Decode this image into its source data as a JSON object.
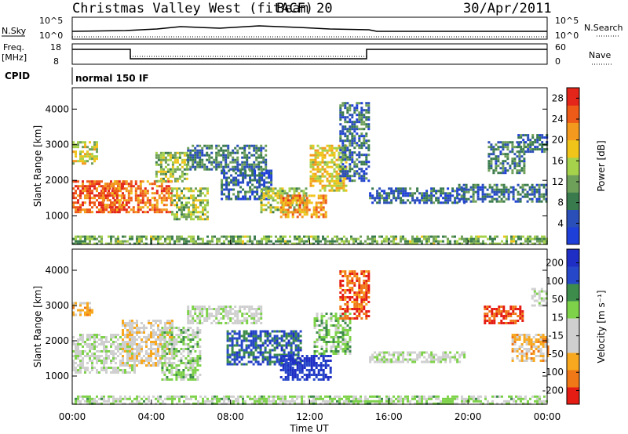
{
  "header": {
    "station": "Christmas Valley West (fitACF)",
    "beam": "Beam 20",
    "date": "30/Apr/2011"
  },
  "status_panels": {
    "nsky_label": "N.Sky",
    "nsearch_label": "N.Search",
    "nsky_left_ticks": [
      "10^5",
      "10^0"
    ],
    "nsky_right_ticks": [
      "10^5",
      "10^0"
    ],
    "freq_label_1": "Freq.",
    "freq_label_2": "[MHz]",
    "freq_ticks": [
      "18",
      "8"
    ],
    "nave_label": "Nave",
    "nave_ticks": [
      "60",
      "0"
    ],
    "cpid_label": "CPID",
    "cpid_value": "normal 150 IF"
  },
  "colors": {
    "power_scale": [
      "#1f3fd9",
      "#2b4fb8",
      "#3a7b4e",
      "#6fa05a",
      "#a6d24b",
      "#f0c419",
      "#f39a1e",
      "#ee5a17",
      "#e3251a"
    ],
    "velocity_scale": [
      "#e51c14",
      "#f07817",
      "#f7a81e",
      "#cfcfcf",
      "#cfcfcf",
      "#7ed24a",
      "#3d8c4c",
      "#2747c9",
      "#1f2fc5"
    ]
  },
  "chart_data": [
    {
      "type": "heatmap",
      "title": "",
      "xlabel": "Time UT",
      "ylabel": "Slant Range [km]",
      "x_ticks": [
        "00:00",
        "04:00",
        "08:00",
        "12:00",
        "16:00",
        "20:00",
        "00:00"
      ],
      "x_range_hours": [
        0,
        24
      ],
      "y_ticks": [
        1000,
        2000,
        3000,
        4000
      ],
      "ylim": [
        200,
        4600
      ],
      "colorbar": {
        "label": "Power [dB]",
        "ticks": [
          "4",
          "8",
          "12",
          "16",
          "20",
          "24",
          "28"
        ],
        "range": [
          0,
          30
        ]
      },
      "regions": [
        {
          "t0": 0.0,
          "t1": 2.6,
          "r0": 1100,
          "r1": 2000,
          "value": 26
        },
        {
          "t0": 0.0,
          "t1": 1.2,
          "r0": 2500,
          "r1": 3100,
          "value": 16
        },
        {
          "t0": 1.5,
          "t1": 5.0,
          "r0": 1100,
          "r1": 2000,
          "value": 24
        },
        {
          "t0": 4.2,
          "t1": 5.8,
          "r0": 2000,
          "r1": 2800,
          "value": 14
        },
        {
          "t0": 5.0,
          "t1": 6.8,
          "r0": 900,
          "r1": 1800,
          "value": 14
        },
        {
          "t0": 5.8,
          "t1": 9.8,
          "r0": 2300,
          "r1": 3000,
          "value": 8
        },
        {
          "t0": 7.5,
          "t1": 10.0,
          "r0": 1500,
          "r1": 2300,
          "value": 6
        },
        {
          "t0": 9.5,
          "t1": 11.8,
          "r0": 1100,
          "r1": 1800,
          "value": 14
        },
        {
          "t0": 10.5,
          "t1": 12.8,
          "r0": 1000,
          "r1": 1600,
          "value": 22
        },
        {
          "t0": 12.0,
          "t1": 13.8,
          "r0": 1700,
          "r1": 3000,
          "value": 18
        },
        {
          "t0": 13.5,
          "t1": 15.0,
          "r0": 2000,
          "r1": 4200,
          "value": 7
        },
        {
          "t0": 15.0,
          "t1": 19.8,
          "r0": 1400,
          "r1": 1800,
          "value": 6
        },
        {
          "t0": 19.5,
          "t1": 24.0,
          "r0": 1400,
          "r1": 1900,
          "value": 7
        },
        {
          "t0": 21.0,
          "t1": 22.8,
          "r0": 2200,
          "r1": 3100,
          "value": 8
        },
        {
          "t0": 22.5,
          "t1": 24.0,
          "r0": 2800,
          "r1": 3300,
          "value": 6
        },
        {
          "t0": 0.0,
          "t1": 24.0,
          "r0": 200,
          "r1": 450,
          "value": 12
        }
      ]
    },
    {
      "type": "heatmap",
      "title": "",
      "xlabel": "Time UT",
      "ylabel": "Slant Range [km]",
      "x_ticks": [
        "00:00",
        "04:00",
        "08:00",
        "12:00",
        "16:00",
        "20:00",
        "00:00"
      ],
      "x_range_hours": [
        0,
        24
      ],
      "y_ticks": [
        1000,
        2000,
        3000,
        4000
      ],
      "ylim": [
        200,
        4600
      ],
      "colorbar": {
        "label": "Velocity [m s⁻¹]",
        "ticks": [
          "200",
          "100",
          "50",
          "15",
          "-15",
          "-50",
          "-100",
          "-200"
        ],
        "range": [
          -250,
          250
        ]
      },
      "regions": [
        {
          "t0": 0.0,
          "t1": 3.2,
          "r0": 1100,
          "r1": 2200,
          "value": 0
        },
        {
          "t0": 0.0,
          "t1": 1.0,
          "r0": 2700,
          "r1": 3100,
          "value": -100
        },
        {
          "t0": 2.5,
          "t1": 5.0,
          "r0": 1300,
          "r1": 2600,
          "value": -60
        },
        {
          "t0": 4.5,
          "t1": 6.5,
          "r0": 900,
          "r1": 2400,
          "value": 40
        },
        {
          "t0": 5.8,
          "t1": 9.5,
          "r0": 2500,
          "r1": 3000,
          "value": 0
        },
        {
          "t0": 7.8,
          "t1": 11.5,
          "r0": 1300,
          "r1": 2300,
          "value": 150
        },
        {
          "t0": 10.5,
          "t1": 13.0,
          "r0": 900,
          "r1": 1600,
          "value": 200
        },
        {
          "t0": 12.2,
          "t1": 14.0,
          "r0": 1600,
          "r1": 2800,
          "value": 60
        },
        {
          "t0": 13.5,
          "t1": 15.0,
          "r0": 2600,
          "r1": 4000,
          "value": -180
        },
        {
          "t0": 15.0,
          "t1": 19.8,
          "r0": 1400,
          "r1": 1700,
          "value": 0
        },
        {
          "t0": 20.8,
          "t1": 22.8,
          "r0": 2500,
          "r1": 3000,
          "value": -200
        },
        {
          "t0": 22.2,
          "t1": 24.0,
          "r0": 1400,
          "r1": 2200,
          "value": -100
        },
        {
          "t0": 23.2,
          "t1": 24.0,
          "r0": 3000,
          "r1": 3500,
          "value": 0
        },
        {
          "t0": 0.0,
          "t1": 24.0,
          "r0": 200,
          "r1": 450,
          "value": 30
        }
      ]
    }
  ]
}
